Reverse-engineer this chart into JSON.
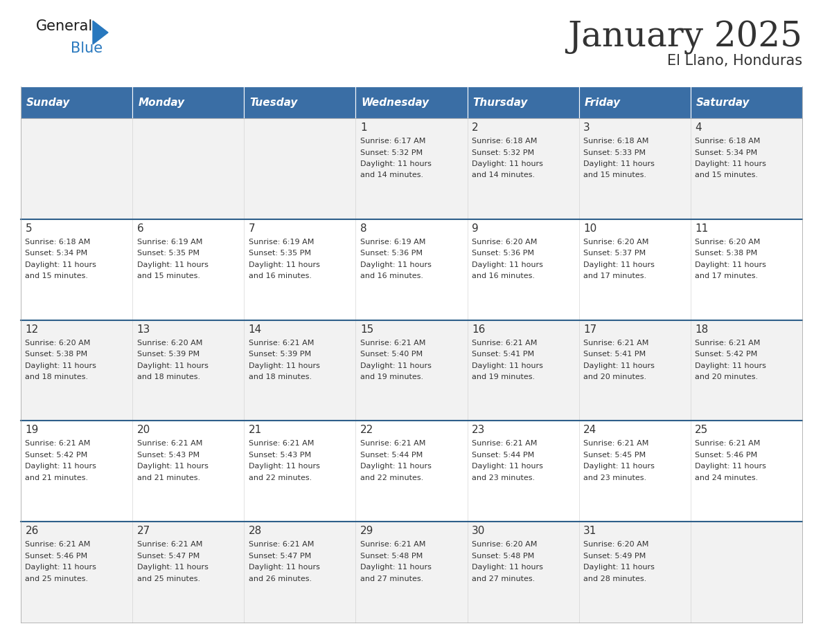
{
  "title": "January 2025",
  "subtitle": "El Llano, Honduras",
  "days_of_week": [
    "Sunday",
    "Monday",
    "Tuesday",
    "Wednesday",
    "Thursday",
    "Friday",
    "Saturday"
  ],
  "header_bg": "#3A6EA5",
  "header_text_color": "#FFFFFF",
  "row_bg_even": "#FFFFFF",
  "row_bg_odd": "#F2F2F2",
  "divider_color": "#2E5F8A",
  "cell_border_color": "#CCCCCC",
  "text_color": "#333333",
  "calendar": [
    [
      null,
      null,
      null,
      {
        "day": 1,
        "sunrise": "6:17 AM",
        "sunset": "5:32 PM",
        "daylight": "11 hours and 14 minutes."
      },
      {
        "day": 2,
        "sunrise": "6:18 AM",
        "sunset": "5:32 PM",
        "daylight": "11 hours and 14 minutes."
      },
      {
        "day": 3,
        "sunrise": "6:18 AM",
        "sunset": "5:33 PM",
        "daylight": "11 hours and 15 minutes."
      },
      {
        "day": 4,
        "sunrise": "6:18 AM",
        "sunset": "5:34 PM",
        "daylight": "11 hours and 15 minutes."
      }
    ],
    [
      {
        "day": 5,
        "sunrise": "6:18 AM",
        "sunset": "5:34 PM",
        "daylight": "11 hours and 15 minutes."
      },
      {
        "day": 6,
        "sunrise": "6:19 AM",
        "sunset": "5:35 PM",
        "daylight": "11 hours and 15 minutes."
      },
      {
        "day": 7,
        "sunrise": "6:19 AM",
        "sunset": "5:35 PM",
        "daylight": "11 hours and 16 minutes."
      },
      {
        "day": 8,
        "sunrise": "6:19 AM",
        "sunset": "5:36 PM",
        "daylight": "11 hours and 16 minutes."
      },
      {
        "day": 9,
        "sunrise": "6:20 AM",
        "sunset": "5:36 PM",
        "daylight": "11 hours and 16 minutes."
      },
      {
        "day": 10,
        "sunrise": "6:20 AM",
        "sunset": "5:37 PM",
        "daylight": "11 hours and 17 minutes."
      },
      {
        "day": 11,
        "sunrise": "6:20 AM",
        "sunset": "5:38 PM",
        "daylight": "11 hours and 17 minutes."
      }
    ],
    [
      {
        "day": 12,
        "sunrise": "6:20 AM",
        "sunset": "5:38 PM",
        "daylight": "11 hours and 18 minutes."
      },
      {
        "day": 13,
        "sunrise": "6:20 AM",
        "sunset": "5:39 PM",
        "daylight": "11 hours and 18 minutes."
      },
      {
        "day": 14,
        "sunrise": "6:21 AM",
        "sunset": "5:39 PM",
        "daylight": "11 hours and 18 minutes."
      },
      {
        "day": 15,
        "sunrise": "6:21 AM",
        "sunset": "5:40 PM",
        "daylight": "11 hours and 19 minutes."
      },
      {
        "day": 16,
        "sunrise": "6:21 AM",
        "sunset": "5:41 PM",
        "daylight": "11 hours and 19 minutes."
      },
      {
        "day": 17,
        "sunrise": "6:21 AM",
        "sunset": "5:41 PM",
        "daylight": "11 hours and 20 minutes."
      },
      {
        "day": 18,
        "sunrise": "6:21 AM",
        "sunset": "5:42 PM",
        "daylight": "11 hours and 20 minutes."
      }
    ],
    [
      {
        "day": 19,
        "sunrise": "6:21 AM",
        "sunset": "5:42 PM",
        "daylight": "11 hours and 21 minutes."
      },
      {
        "day": 20,
        "sunrise": "6:21 AM",
        "sunset": "5:43 PM",
        "daylight": "11 hours and 21 minutes."
      },
      {
        "day": 21,
        "sunrise": "6:21 AM",
        "sunset": "5:43 PM",
        "daylight": "11 hours and 22 minutes."
      },
      {
        "day": 22,
        "sunrise": "6:21 AM",
        "sunset": "5:44 PM",
        "daylight": "11 hours and 22 minutes."
      },
      {
        "day": 23,
        "sunrise": "6:21 AM",
        "sunset": "5:44 PM",
        "daylight": "11 hours and 23 minutes."
      },
      {
        "day": 24,
        "sunrise": "6:21 AM",
        "sunset": "5:45 PM",
        "daylight": "11 hours and 23 minutes."
      },
      {
        "day": 25,
        "sunrise": "6:21 AM",
        "sunset": "5:46 PM",
        "daylight": "11 hours and 24 minutes."
      }
    ],
    [
      {
        "day": 26,
        "sunrise": "6:21 AM",
        "sunset": "5:46 PM",
        "daylight": "11 hours and 25 minutes."
      },
      {
        "day": 27,
        "sunrise": "6:21 AM",
        "sunset": "5:47 PM",
        "daylight": "11 hours and 25 minutes."
      },
      {
        "day": 28,
        "sunrise": "6:21 AM",
        "sunset": "5:47 PM",
        "daylight": "11 hours and 26 minutes."
      },
      {
        "day": 29,
        "sunrise": "6:21 AM",
        "sunset": "5:48 PM",
        "daylight": "11 hours and 27 minutes."
      },
      {
        "day": 30,
        "sunrise": "6:20 AM",
        "sunset": "5:48 PM",
        "daylight": "11 hours and 27 minutes."
      },
      {
        "day": 31,
        "sunrise": "6:20 AM",
        "sunset": "5:49 PM",
        "daylight": "11 hours and 28 minutes."
      },
      null
    ]
  ],
  "logo_text_general": "General",
  "logo_text_blue": "Blue",
  "logo_color_general": "#1a1a1a",
  "logo_color_blue": "#2878BE",
  "logo_triangle_color": "#2878BE",
  "title_fontsize": 36,
  "subtitle_fontsize": 15,
  "header_fontsize": 11,
  "day_num_fontsize": 11,
  "cell_text_fontsize": 8.0
}
